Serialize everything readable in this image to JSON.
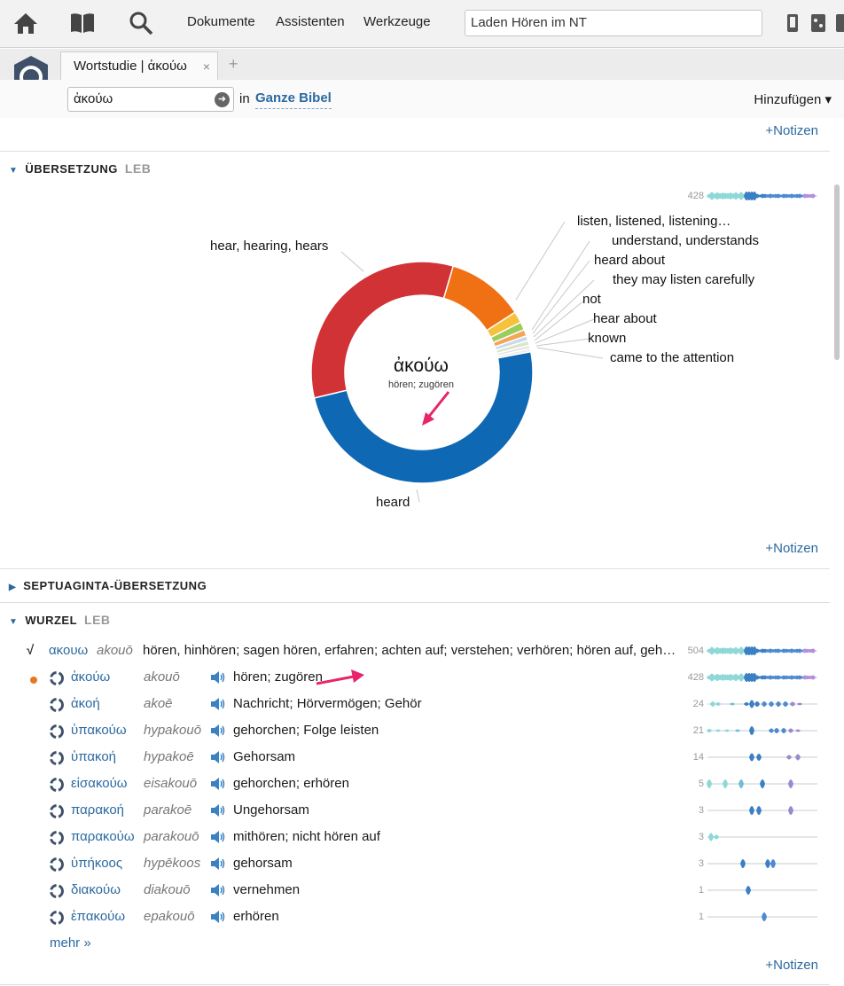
{
  "toolbar": {
    "menus": [
      "Dokumente",
      "Assistenten",
      "Werkzeuge"
    ],
    "command": "Laden Hören im NT"
  },
  "tab": {
    "title": "Wortstudie | ἀκούω",
    "close": "×",
    "add": "+"
  },
  "search": {
    "value": "ἀκούω",
    "in_label": "in",
    "scope": "Ganze Bibel",
    "add_label": "Hinzufügen ▾"
  },
  "notes_label": "+Notizen",
  "translation": {
    "title": "ÜBERSETZUNG",
    "source": "LEB",
    "total": "428",
    "center_word": "ἀκούω",
    "center_gloss": "hören; zugören",
    "chart_data": {
      "type": "pie",
      "categories": [
        "heard",
        "hear, hearing, hears",
        "listen, listened, listening…",
        "understand, understands",
        "heard about",
        "they may listen carefully",
        "not",
        "hear about",
        "known",
        "came to the attention"
      ],
      "values": [
        209,
        141,
        48,
        7,
        5,
        4,
        3,
        3,
        2,
        2
      ],
      "colors": [
        "#0e68b3",
        "#d13236",
        "#f07014",
        "#f6c23b",
        "#9ccd5a",
        "#f2a65a",
        "#c9d8ea",
        "#dbe6c8",
        "#e0e0e0",
        "#ececec"
      ]
    }
  },
  "septuagint": {
    "title": "SEPTUAGINTA-ÜBERSETZUNG"
  },
  "root": {
    "title": "WURZEL",
    "source": "LEB",
    "root_greek": "ακουω",
    "root_translit": "akouō",
    "root_gloss": "hören, hinhören; sagen hören, erfahren; achten auf; verstehen; verhören; hören auf, geh…",
    "root_count": "504",
    "words": [
      {
        "greek": "ἀκούω",
        "translit": "akouō",
        "gloss": "hören; zugören",
        "count": "428"
      },
      {
        "greek": "ἀκοή",
        "translit": "akoē",
        "gloss": "Nachricht; Hörvermögen; Gehör",
        "count": "24"
      },
      {
        "greek": "ὑπακούω",
        "translit": "hypakouō",
        "gloss": "gehorchen; Folge leisten",
        "count": "21"
      },
      {
        "greek": "ὑπακοή",
        "translit": "hypakoē",
        "gloss": "Gehorsam",
        "count": "14"
      },
      {
        "greek": "εἰσακούω",
        "translit": "eisakouō",
        "gloss": "gehorchen; erhören",
        "count": "5"
      },
      {
        "greek": "παρακοή",
        "translit": "parakoē",
        "gloss": "Ungehorsam",
        "count": "3"
      },
      {
        "greek": "παρακούω",
        "translit": "parakouō",
        "gloss": "mithören; nicht hören auf",
        "count": "3"
      },
      {
        "greek": "ὑπήκοος",
        "translit": "hypēkoos",
        "gloss": "gehorsam",
        "count": "3"
      },
      {
        "greek": "διακούω",
        "translit": "diakouō",
        "gloss": "vernehmen",
        "count": "1"
      },
      {
        "greek": "ἐπακούω",
        "translit": "epakouō",
        "gloss": "erhören",
        "count": "1"
      }
    ],
    "more": "mehr »"
  }
}
